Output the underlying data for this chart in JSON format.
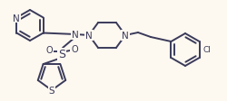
{
  "bg_color": "#fdf8f0",
  "line_color": "#3a3a5a",
  "line_width": 1.4,
  "font_size": 7.0,
  "figsize": [
    2.5,
    1.13
  ],
  "dpi": 100,
  "xlim": [
    0,
    250
  ],
  "ylim": [
    0,
    113
  ]
}
